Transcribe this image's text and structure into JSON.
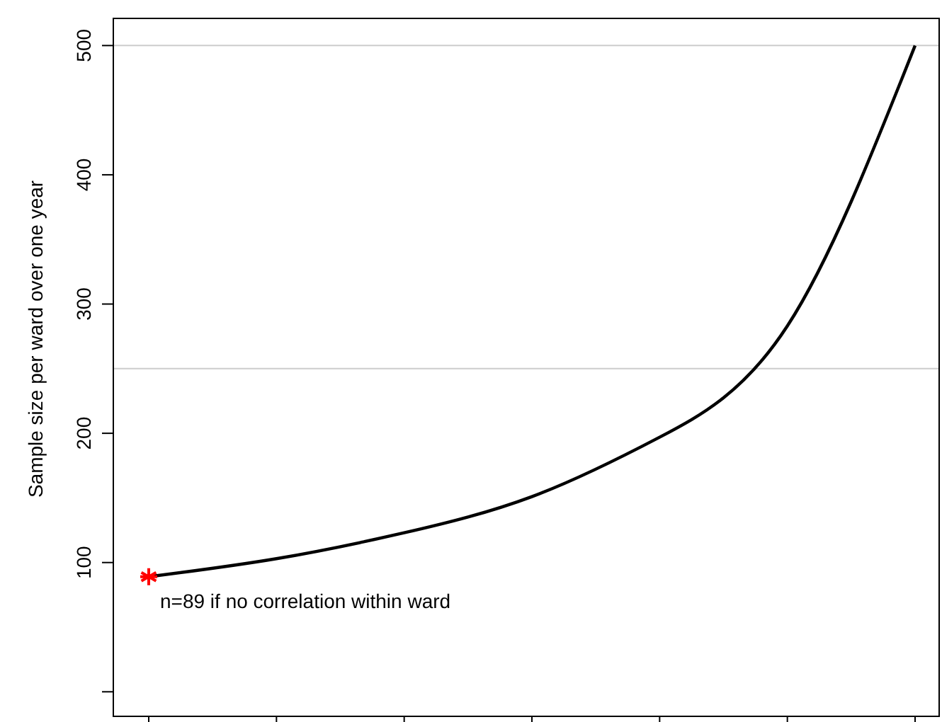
{
  "chart_data": {
    "type": "line",
    "ylabel": "Sample size per ward over one year",
    "categories": [
      null,
      null,
      null,
      null,
      null,
      null,
      null
    ],
    "series": [
      {
        "color": "#000000",
        "marker": "none",
        "values": [
          89,
          103,
          123,
          151,
          197,
          283,
          500
        ]
      },
      {
        "type": "scatter",
        "color": "#ff0000",
        "marker": "cross",
        "values": [
          89,
          null,
          null,
          null,
          null,
          null,
          null
        ]
      }
    ],
    "ylim": [
      -19,
      521
    ],
    "yticks": [
      {
        "value": 0,
        "label": null
      },
      100,
      200,
      300,
      400,
      500
    ],
    "ref_lines": [
      {
        "axis": "y",
        "value": 500,
        "color": "#cccccc"
      },
      {
        "axis": "y",
        "value": 250,
        "color": "#cccccc"
      }
    ],
    "annotations": [
      "n=89 if no correlation within ward"
    ],
    "grid": false
  }
}
